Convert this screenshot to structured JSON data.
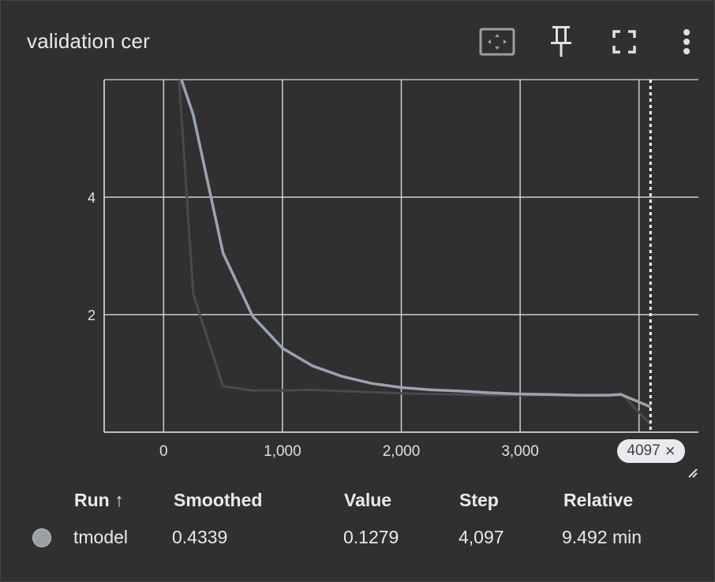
{
  "card": {
    "title": "validation cer"
  },
  "toolbar": {
    "fit_icon": "fit-domain-icon",
    "pin_icon": "pin-icon",
    "fullscreen_icon": "fullscreen-icon",
    "more_icon": "more-vert-icon"
  },
  "chart_data": {
    "type": "line",
    "title": "validation cer",
    "xlabel": "",
    "ylabel": "",
    "xlim": [
      -500,
      4500
    ],
    "ylim": [
      0,
      6
    ],
    "x_ticks": [
      "0",
      "1,000",
      "2,000",
      "3,000"
    ],
    "x_tick_values": [
      0,
      1000,
      2000,
      3000
    ],
    "y_ticks": [
      "2",
      "4"
    ],
    "y_tick_values": [
      2,
      4
    ],
    "grid": true,
    "series": [
      {
        "name": "tmodel",
        "role": "smoothed",
        "color": "#9aa4b1",
        "x": [
          150,
          250,
          500,
          750,
          1000,
          1250,
          1500,
          1750,
          2000,
          2250,
          2500,
          2750,
          3000,
          3250,
          3500,
          3750,
          3850,
          4097
        ],
        "y": [
          6.0,
          5.4,
          3.05,
          1.97,
          1.43,
          1.13,
          0.95,
          0.83,
          0.76,
          0.72,
          0.7,
          0.67,
          0.65,
          0.64,
          0.63,
          0.63,
          0.64,
          0.43
        ]
      },
      {
        "name": "tmodel",
        "role": "raw",
        "color": "#4a4a4a",
        "x": [
          130,
          250,
          500,
          750,
          1000,
          1250,
          1500,
          1750,
          2000,
          2250,
          2500,
          2750,
          3000,
          3250,
          3500,
          3750,
          3850,
          4097
        ],
        "y": [
          6.0,
          2.35,
          0.78,
          0.71,
          0.71,
          0.72,
          0.7,
          0.68,
          0.66,
          0.65,
          0.64,
          0.63,
          0.63,
          0.63,
          0.62,
          0.63,
          0.66,
          0.13
        ]
      }
    ],
    "hover_step": 4097
  },
  "step_badge": {
    "label": "4097",
    "close": "×"
  },
  "table": {
    "headers": {
      "run": "Run ↑",
      "smoothed": "Smoothed",
      "value": "Value",
      "step": "Step",
      "relative": "Relative"
    },
    "rows": [
      {
        "run": "tmodel",
        "smoothed": "0.4339",
        "value": "0.1279",
        "step": "4,097",
        "relative": "9.492 min",
        "color": "#9aa0a6"
      }
    ]
  }
}
